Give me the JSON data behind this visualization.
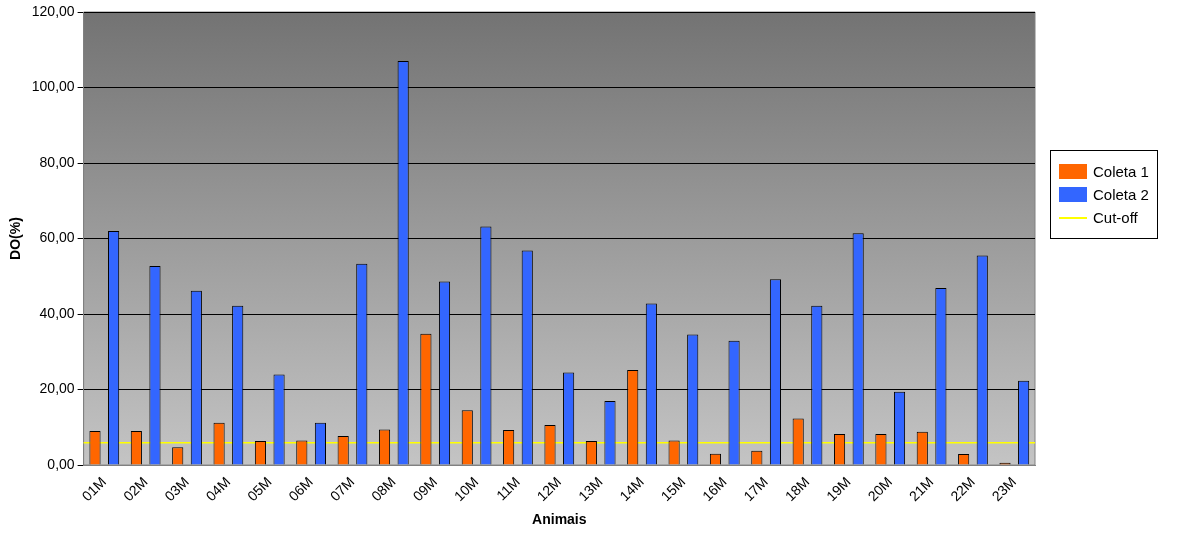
{
  "chart_data": {
    "type": "bar",
    "xlabel": "Animais",
    "ylabel": "DO(%)",
    "categories": [
      "01M",
      "02M",
      "03M",
      "04M",
      "05M",
      "06M",
      "07M",
      "08M",
      "09M",
      "10M",
      "11M",
      "12M",
      "13M",
      "14M",
      "15M",
      "16M",
      "17M",
      "18M",
      "19M",
      "20M",
      "21M",
      "22M",
      "23M"
    ],
    "series": [
      {
        "name": "Coleta 1",
        "color": "#ff6600",
        "values": [
          9,
          9,
          4.7,
          11.2,
          6.4,
          6.5,
          7.7,
          9.4,
          34.8,
          14.5,
          9.3,
          10.6,
          6.4,
          25.2,
          6.5,
          3,
          3.8,
          12.3,
          8.2,
          8.2,
          8.8,
          2.9,
          0.6
        ]
      },
      {
        "name": "Coleta 2",
        "color": "#3366ff",
        "values": [
          62,
          52.7,
          46.2,
          42.2,
          24,
          11.2,
          53.3,
          107,
          48.6,
          63.2,
          56.8,
          24.5,
          17,
          42.8,
          34.6,
          32.9,
          49.2,
          42.2,
          61.4,
          19.4,
          46.9,
          55.5,
          22.3
        ]
      }
    ],
    "ref_lines": [
      {
        "axis": "y",
        "value": 5.9,
        "label": "Cut-off",
        "color": "#ffff00"
      }
    ],
    "ylim": [
      0,
      120
    ],
    "yticks": [
      {
        "value": 0,
        "label": "0,00"
      },
      {
        "value": 20,
        "label": "20,00"
      },
      {
        "value": 40,
        "label": "40,00"
      },
      {
        "value": 60,
        "label": "60,00"
      },
      {
        "value": 80,
        "label": "80,00"
      },
      {
        "value": 100,
        "label": "100,00"
      },
      {
        "value": 120,
        "label": "120,00"
      }
    ],
    "grid": "y",
    "legend": "right"
  }
}
